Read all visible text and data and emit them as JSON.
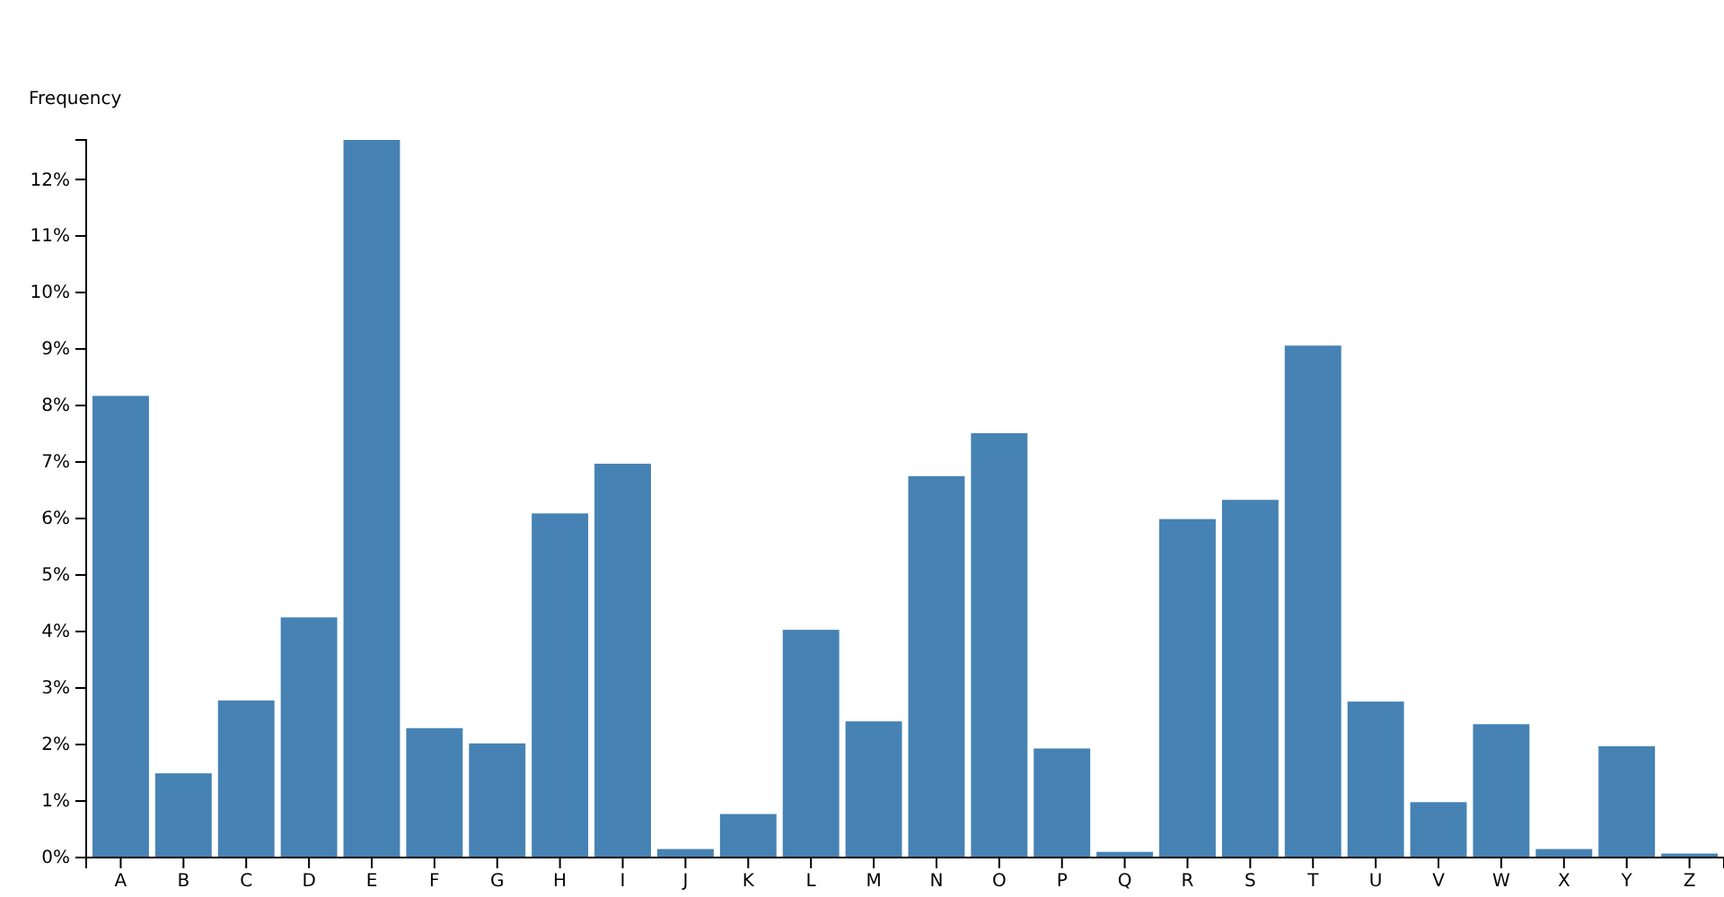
{
  "chart_data": {
    "type": "bar",
    "ylabel": "Frequency",
    "categories": [
      "A",
      "B",
      "C",
      "D",
      "E",
      "F",
      "G",
      "H",
      "I",
      "J",
      "K",
      "L",
      "M",
      "N",
      "O",
      "P",
      "Q",
      "R",
      "S",
      "T",
      "U",
      "V",
      "W",
      "X",
      "Y",
      "Z"
    ],
    "values": [
      8.17,
      1.49,
      2.78,
      4.25,
      12.7,
      2.29,
      2.02,
      6.09,
      6.97,
      0.15,
      0.77,
      4.03,
      2.41,
      6.75,
      7.51,
      1.93,
      0.1,
      5.99,
      6.33,
      9.06,
      2.76,
      0.98,
      2.36,
      0.15,
      1.97,
      0.07
    ],
    "color": "#4682b4",
    "ylim": [
      0,
      12.7
    ],
    "yticks": [
      {
        "value": 0,
        "label": "0%"
      },
      {
        "value": 1,
        "label": "1%"
      },
      {
        "value": 2,
        "label": "2%"
      },
      {
        "value": 3,
        "label": "3%"
      },
      {
        "value": 4,
        "label": "4%"
      },
      {
        "value": 5,
        "label": "5%"
      },
      {
        "value": 6,
        "label": "6%"
      },
      {
        "value": 7,
        "label": "7%"
      },
      {
        "value": 8,
        "label": "8%"
      },
      {
        "value": 9,
        "label": "9%"
      },
      {
        "value": 10,
        "label": "10%"
      },
      {
        "value": 11,
        "label": "11%"
      },
      {
        "value": 12,
        "label": "12%"
      }
    ],
    "grid": false
  }
}
